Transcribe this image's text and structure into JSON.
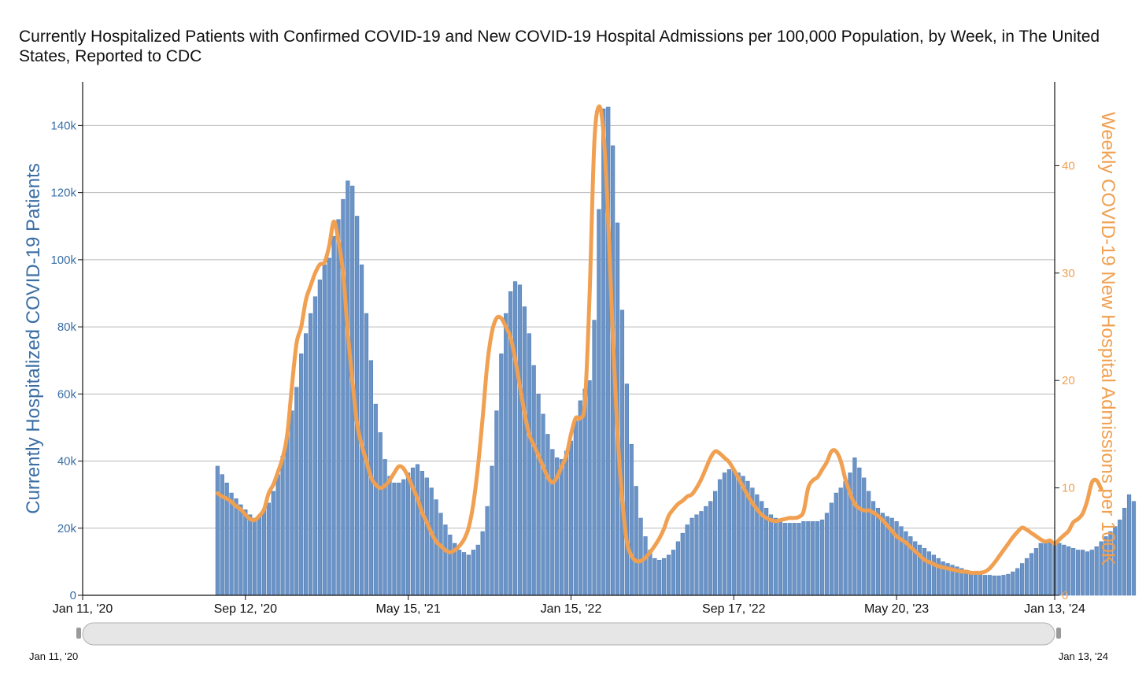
{
  "chart_data": {
    "type": "bar",
    "title": "Currently Hospitalized Patients with Confirmed COVID-19 and New COVID-19 Hospital Admissions per 100,000 Population, by Week, in The United States, Reported to CDC",
    "ylabel_left": "Currently Hospitalized COVID-19 Patients",
    "ylabel_right": "Weekly COVID-19 New Hospital Admissions per 100K",
    "x_ticks": [
      "Jan 11, '20",
      "Sep 12, '20",
      "May 15, '21",
      "Jan 15, '22",
      "Sep 17, '22",
      "May 20, '23",
      "Jan 13, '24"
    ],
    "y_left_ticks": [
      "0",
      "20k",
      "40k",
      "60k",
      "80k",
      "100k",
      "120k",
      "140k"
    ],
    "y_right_ticks": [
      "0",
      "10",
      "20",
      "30",
      "40"
    ],
    "xlim": [
      "2020-01-11",
      "2024-01-13"
    ],
    "ylim_left": [
      0,
      153000
    ],
    "ylim_right": [
      0,
      47.8
    ],
    "grid": "horizontal",
    "navigator_labels": [
      "Jan 11, '20",
      "Jan 13, '24"
    ],
    "colors": {
      "bars": "#6b93c6",
      "bar_edge": "#4f7bb3",
      "line": "#f0a050",
      "left_axis": "#3a6ea5",
      "right_axis": "#f0a050",
      "grid": "#b9b9b9"
    },
    "series": [
      {
        "name": "Currently Hospitalized COVID-19 Patients",
        "type": "bar",
        "axis": "left",
        "x_start": "2020-08-01",
        "interval_days": 7,
        "values": [
          38500,
          36000,
          33500,
          30500,
          28800,
          27000,
          25500,
          24000,
          23000,
          23500,
          25500,
          27500,
          31000,
          36000,
          41500,
          48000,
          55000,
          62000,
          72000,
          78000,
          84000,
          89000,
          94000,
          98500,
          100500,
          107000,
          112000,
          118000,
          123500,
          122000,
          113000,
          98500,
          84000,
          70000,
          57000,
          48500,
          40500,
          35500,
          33500,
          33500,
          34500,
          36500,
          38000,
          39000,
          37000,
          35000,
          32000,
          28500,
          24500,
          21000,
          18000,
          15500,
          13500,
          12800,
          12000,
          13500,
          15000,
          19000,
          26500,
          38500,
          55000,
          72000,
          84000,
          90500,
          93500,
          92500,
          86000,
          78000,
          68500,
          60000,
          54000,
          48000,
          43500,
          41000,
          40500,
          43000,
          46000,
          52000,
          58000,
          61500,
          64000,
          82000,
          115000,
          145000,
          145500,
          134000,
          111000,
          85000,
          63000,
          45000,
          32500,
          23000,
          17500,
          13500,
          11000,
          10500,
          11000,
          12000,
          13500,
          16000,
          18500,
          21000,
          23000,
          24000,
          25000,
          26500,
          28000,
          31000,
          34500,
          36500,
          37500,
          37500,
          36500,
          35500,
          34000,
          32000,
          30000,
          28000,
          26000,
          24000,
          23000,
          22000,
          21500,
          21500,
          21500,
          21500,
          22000,
          22000,
          22000,
          22000,
          22500,
          24500,
          27500,
          30500,
          32000,
          34000,
          36500,
          41000,
          38000,
          35000,
          31000,
          28000,
          26000,
          24500,
          23500,
          23000,
          22000,
          20500,
          19000,
          17500,
          16000,
          15000,
          14000,
          13000,
          12000,
          11000,
          10000,
          9500,
          9000,
          8500,
          8000,
          7500,
          7000,
          6600,
          6300,
          6000,
          6000,
          5800,
          5800,
          6000,
          6300,
          7000,
          8000,
          9500,
          11000,
          12500,
          14000,
          15500,
          16500,
          16500,
          16000,
          15500,
          15000,
          14500,
          14000,
          13500,
          13500,
          13000,
          13500,
          14500,
          16000,
          17500,
          19000,
          20500,
          22500,
          26000,
          30000,
          28000
        ]
      },
      {
        "name": "Weekly COVID-19 New Hospital Admissions per 100K",
        "type": "line",
        "axis": "right",
        "x_start": "2020-08-01",
        "interval_days": 7,
        "values": [
          9.5,
          9.2,
          9.0,
          8.7,
          8.3,
          8.0,
          7.5,
          7.1,
          7.0,
          7.4,
          8.0,
          9.5,
          10.3,
          11.5,
          12.8,
          15.0,
          19.5,
          23.5,
          25.0,
          27.5,
          28.8,
          30.0,
          30.8,
          31.0,
          32.5,
          34.8,
          33.0,
          30.0,
          24.5,
          20.0,
          16.0,
          14.0,
          12.5,
          11.0,
          10.3,
          10.0,
          10.2,
          10.7,
          11.4,
          12.0,
          11.8,
          11.0,
          10.0,
          9.0,
          7.7,
          6.8,
          5.8,
          5.0,
          4.6,
          4.2,
          4.0,
          4.2,
          4.6,
          5.2,
          6.3,
          8.5,
          12.0,
          16.5,
          21.5,
          24.5,
          25.8,
          25.8,
          25.0,
          24.0,
          22.0,
          19.5,
          17.0,
          15.0,
          14.0,
          13.0,
          12.0,
          11.0,
          10.5,
          11.0,
          12.0,
          13.0,
          15.0,
          16.5,
          16.5,
          18.0,
          28.0,
          42.0,
          45.5,
          43.0,
          35.0,
          24.0,
          15.0,
          9.0,
          5.0,
          3.7,
          3.2,
          3.2,
          3.5,
          4.0,
          4.6,
          5.3,
          6.2,
          7.4,
          8.0,
          8.5,
          8.8,
          9.2,
          9.4,
          10.0,
          10.8,
          11.8,
          12.8,
          13.4,
          13.2,
          12.8,
          12.4,
          11.7,
          10.9,
          10.1,
          9.3,
          8.6,
          8.0,
          7.5,
          7.2,
          7.0,
          6.9,
          7.0,
          7.1,
          7.2,
          7.2,
          7.3,
          7.8,
          10.0,
          10.7,
          11.0,
          11.7,
          12.4,
          13.4,
          13.4,
          12.5,
          10.8,
          9.5,
          8.5,
          8.1,
          7.9,
          7.9,
          7.7,
          7.4,
          7.0,
          6.5,
          6.0,
          5.5,
          5.2,
          4.9,
          4.5,
          4.1,
          3.7,
          3.3,
          3.1,
          2.9,
          2.7,
          2.6,
          2.5,
          2.4,
          2.3,
          2.2,
          2.2,
          2.1,
          2.1,
          2.1,
          2.2,
          2.5,
          3.0,
          3.6,
          4.2,
          4.8,
          5.4,
          5.9,
          6.3,
          6.1,
          5.8,
          5.5,
          5.2,
          5.0,
          5.1,
          4.8,
          5.2,
          5.6,
          6.0,
          6.8,
          7.1,
          7.6,
          8.8,
          10.5,
          10.7,
          9.9
        ]
      }
    ]
  }
}
